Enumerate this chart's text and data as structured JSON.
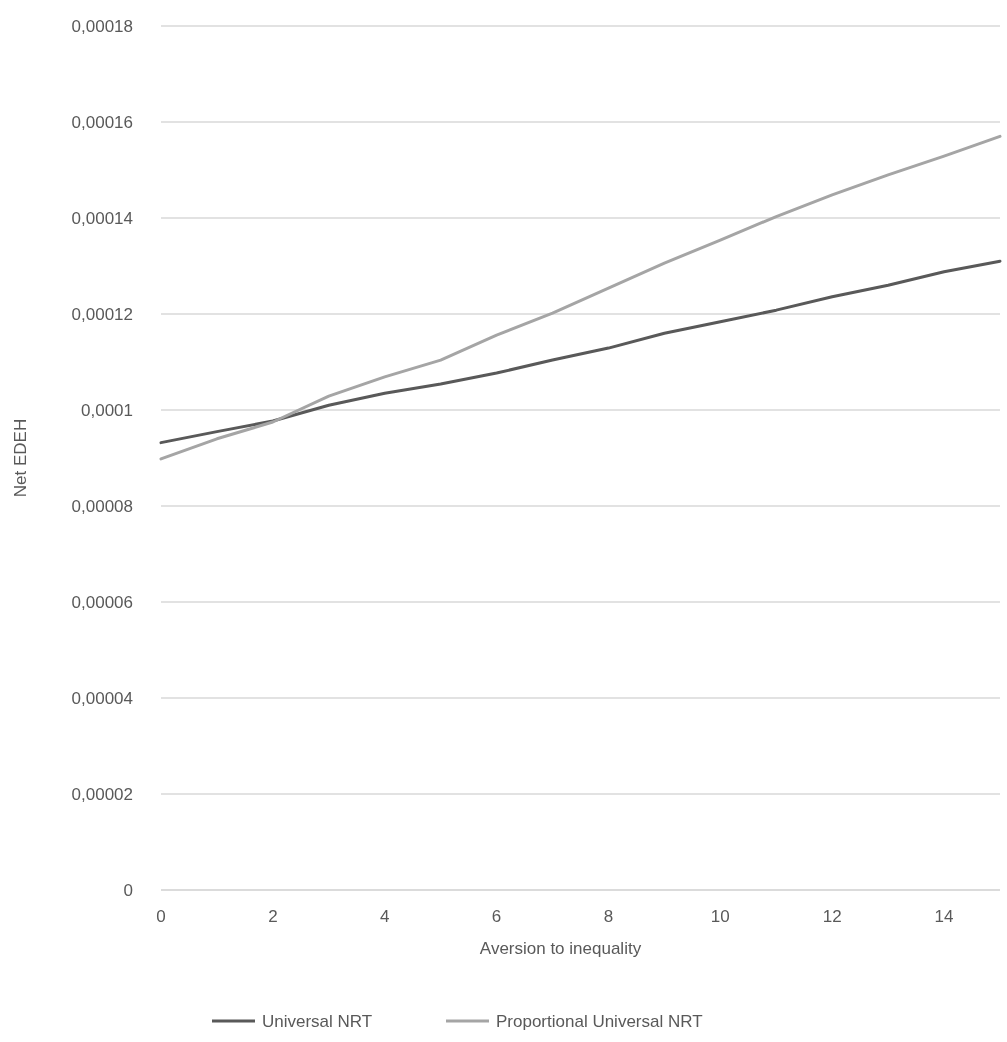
{
  "chart_data": {
    "type": "line",
    "xlabel": "Aversion to inequality",
    "ylabel": "Net EDEH",
    "x": [
      0,
      1,
      2,
      3,
      4,
      5,
      6,
      7,
      8,
      9,
      10,
      11,
      12,
      13,
      14,
      15
    ],
    "series": [
      {
        "name": "Universal NRT",
        "color": "#595959",
        "values": [
          9.32e-05,
          9.55e-05,
          9.77e-05,
          0.000101,
          0.0001035,
          0.0001054,
          0.0001077,
          0.0001104,
          0.0001129,
          0.000116,
          0.0001184,
          0.0001208,
          0.0001236,
          0.000126,
          0.0001288,
          0.000131
        ]
      },
      {
        "name": "Proportional Universal NRT",
        "color": "#a5a5a5",
        "values": [
          8.98e-05,
          9.4e-05,
          9.75e-05,
          0.0001029,
          0.0001069,
          0.0001104,
          0.0001156,
          0.0001202,
          0.0001254,
          0.0001306,
          0.0001354,
          0.0001403,
          0.0001448,
          0.000149,
          0.0001529,
          0.000157
        ]
      }
    ],
    "xlim": [
      0,
      15
    ],
    "xticks": [
      0,
      2,
      4,
      6,
      8,
      10,
      12,
      14
    ],
    "ylim": [
      0,
      0.00018
    ],
    "yticks": [
      0,
      {
        "value": 2e-05,
        "label": "0,00002"
      },
      {
        "value": 4e-05,
        "label": "0,00004"
      },
      {
        "value": 6e-05,
        "label": "0,00006"
      },
      {
        "value": 8e-05,
        "label": "0,00008"
      },
      {
        "value": 0.0001,
        "label": "0,0001"
      },
      {
        "value": 0.00012,
        "label": "0,00012"
      },
      {
        "value": 0.00014,
        "label": "0,00014"
      },
      {
        "value": 0.00016,
        "label": "0,00016"
      },
      {
        "value": 0.00018,
        "label": "0,00018"
      }
    ],
    "grid": "y",
    "legend": "bottom",
    "marker": "none",
    "line_style": "solid"
  }
}
